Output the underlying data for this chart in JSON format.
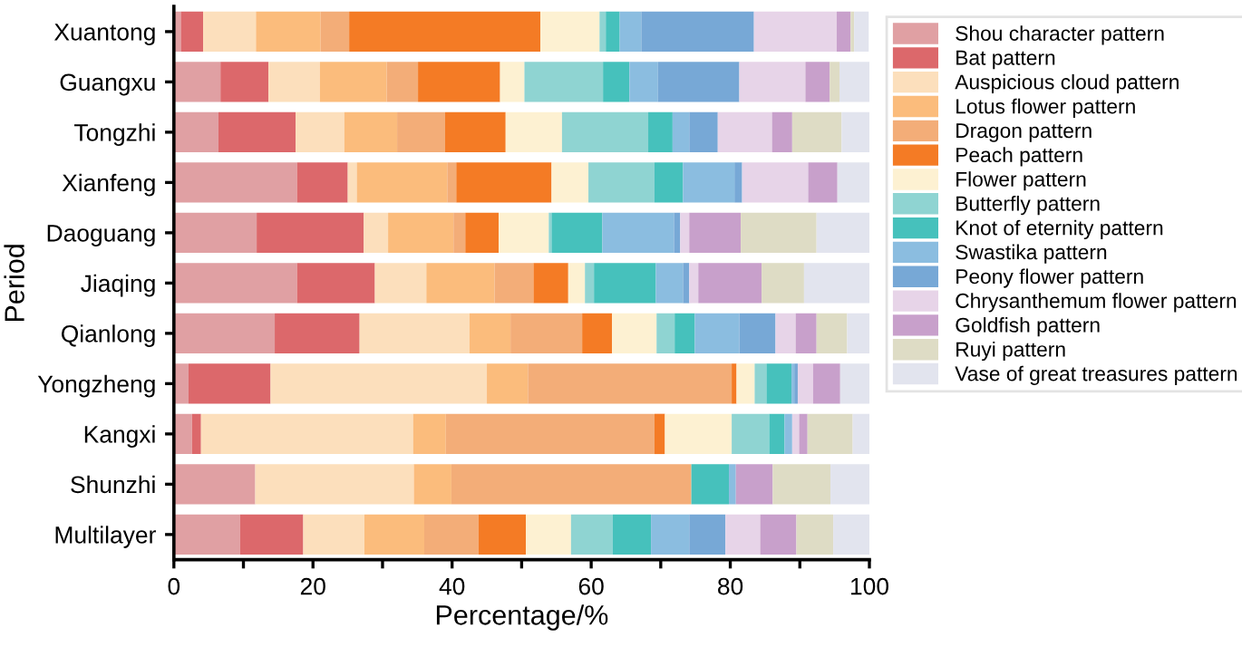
{
  "chart_data": {
    "type": "bar",
    "orientation": "horizontal",
    "stacked": true,
    "xlabel": "Percentage/%",
    "ylabel": "Period",
    "legend": "right",
    "grid": false,
    "categories": [
      "Xuantong",
      "Guangxu",
      "Tongzhi",
      "Xianfeng",
      "Daoguang",
      "Jiaqing",
      "Qianlong",
      "Yongzheng",
      "Kangxi",
      "Shunzhi",
      "Multilayer"
    ],
    "xlim": [
      0,
      100
    ],
    "xticks": [
      0,
      {
        "value": 10,
        "label": null
      },
      20,
      {
        "value": 30,
        "label": null
      },
      40,
      {
        "value": 50,
        "label": null
      },
      60,
      {
        "value": 70,
        "label": null
      },
      80,
      {
        "value": 90,
        "label": null
      },
      100
    ],
    "series": [
      {
        "name": "Shou character pattern",
        "color": "#e0a0a3",
        "values": [
          1.0,
          6.7,
          6.4,
          17.7,
          11.9,
          17.7,
          14.5,
          2.1,
          2.6,
          11.7,
          9.5
        ]
      },
      {
        "name": "Bat pattern",
        "color": "#dc686b",
        "values": [
          3.2,
          6.9,
          11.1,
          7.3,
          15.4,
          11.2,
          12.2,
          11.8,
          1.3,
          0,
          9.1
        ]
      },
      {
        "name": "Auspicious cloud pattern",
        "color": "#fcdfbc",
        "values": [
          7.6,
          7.4,
          7.0,
          1.3,
          3.5,
          7.4,
          15.8,
          31.1,
          30.5,
          22.8,
          8.8
        ]
      },
      {
        "name": "Lotus flower pattern",
        "color": "#fbbc7c",
        "values": [
          9.3,
          9.6,
          7.6,
          13.0,
          9.4,
          9.8,
          5.9,
          5.9,
          4.7,
          5.4,
          8.6
        ]
      },
      {
        "name": "Dragon pattern",
        "color": "#f3ad78",
        "values": [
          4.1,
          4.5,
          6.9,
          1.3,
          1.7,
          5.6,
          10.3,
          29.3,
          30.0,
          34.5,
          7.8
        ]
      },
      {
        "name": "Peach pattern",
        "color": "#f47b25",
        "values": [
          27.5,
          11.8,
          8.7,
          13.7,
          4.8,
          5.0,
          4.3,
          0.7,
          1.5,
          0,
          6.8
        ]
      },
      {
        "name": "Flower pattern",
        "color": "#fdf1d2",
        "values": [
          8.5,
          3.5,
          8.1,
          5.3,
          7.2,
          2.4,
          6.4,
          2.6,
          9.6,
          0,
          6.5
        ]
      },
      {
        "name": "Butterfly pattern",
        "color": "#8fd4d2",
        "values": [
          0.9,
          11.3,
          12.4,
          9.5,
          0.4,
          1.3,
          2.6,
          1.7,
          5.4,
          0,
          6.0
        ]
      },
      {
        "name": "Knot of eternity pattern",
        "color": "#46c1bc",
        "values": [
          2.0,
          3.8,
          3.5,
          4.1,
          7.3,
          8.9,
          2.9,
          3.6,
          2.2,
          5.4,
          5.5
        ]
      },
      {
        "name": "Swastika pattern",
        "color": "#8bbde0",
        "values": [
          3.1,
          4.1,
          2.4,
          7.4,
          10.3,
          3.9,
          6.4,
          0.4,
          1.1,
          1.0,
          5.5
        ]
      },
      {
        "name": "Peony flower pattern",
        "color": "#77a8d6",
        "values": [
          16.2,
          11.7,
          4.1,
          1.1,
          0.9,
          0.9,
          5.2,
          0.5,
          0,
          0,
          5.2
        ]
      },
      {
        "name": "Chrysanthemum flower pattern",
        "color": "#e7d4e8",
        "values": [
          11.9,
          9.5,
          7.8,
          9.5,
          1.3,
          1.3,
          2.9,
          2.2,
          1.0,
          0,
          5.0
        ]
      },
      {
        "name": "Goldfish pattern",
        "color": "#c8a0cb",
        "values": [
          2.0,
          3.5,
          2.9,
          4.2,
          7.4,
          9.1,
          3.0,
          3.9,
          1.2,
          5.3,
          5.2
        ]
      },
      {
        "name": "Ruyi pattern",
        "color": "#dedcc5",
        "values": [
          0.5,
          1.4,
          7.1,
          0,
          10.9,
          6.1,
          4.4,
          0,
          6.5,
          8.3,
          5.3
        ]
      },
      {
        "name": "Vase of great treasures pattern",
        "color": "#e2e4ee",
        "values": [
          2.1,
          4.3,
          4.0,
          4.6,
          7.6,
          9.4,
          3.2,
          4.2,
          2.4,
          5.6,
          5.2
        ]
      }
    ]
  }
}
